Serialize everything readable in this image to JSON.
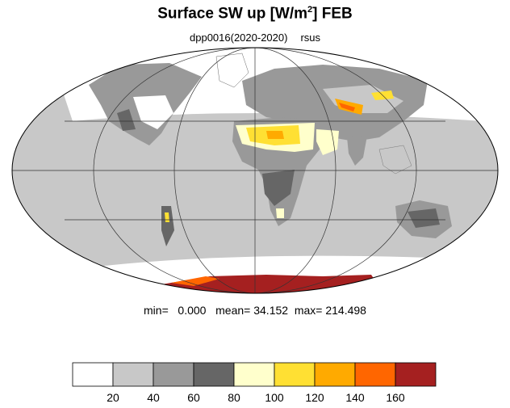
{
  "title_main": "Surface SW up [W/m",
  "title_sup": "2",
  "title_tail": "]  FEB",
  "subtitle_run": "dpp0016(2020-2020)",
  "subtitle_var": "rsus",
  "stats": {
    "min_label": "min=",
    "min": "0.000",
    "mean_label": "mean=",
    "mean": "34.152",
    "max_label": "max=",
    "max": "214.498"
  },
  "colorbar": {
    "colors": [
      "#ffffff",
      "#c8c8c8",
      "#999999",
      "#666666",
      "#ffffcc",
      "#ffe033",
      "#ffaa00",
      "#ff6600",
      "#a52020"
    ],
    "ticks": [
      "20",
      "40",
      "60",
      "80",
      "100",
      "120",
      "140",
      "160"
    ]
  },
  "colors": {
    "ocean": "#c8c8c8",
    "land_bright": "#ffffff",
    "land_mid": "#999999",
    "land_dark": "#666666",
    "hot_1": "#ffffcc",
    "hot_2": "#ffe033",
    "hot_3": "#ffaa00",
    "hot_4": "#ff6600",
    "ice": "#a52020"
  }
}
